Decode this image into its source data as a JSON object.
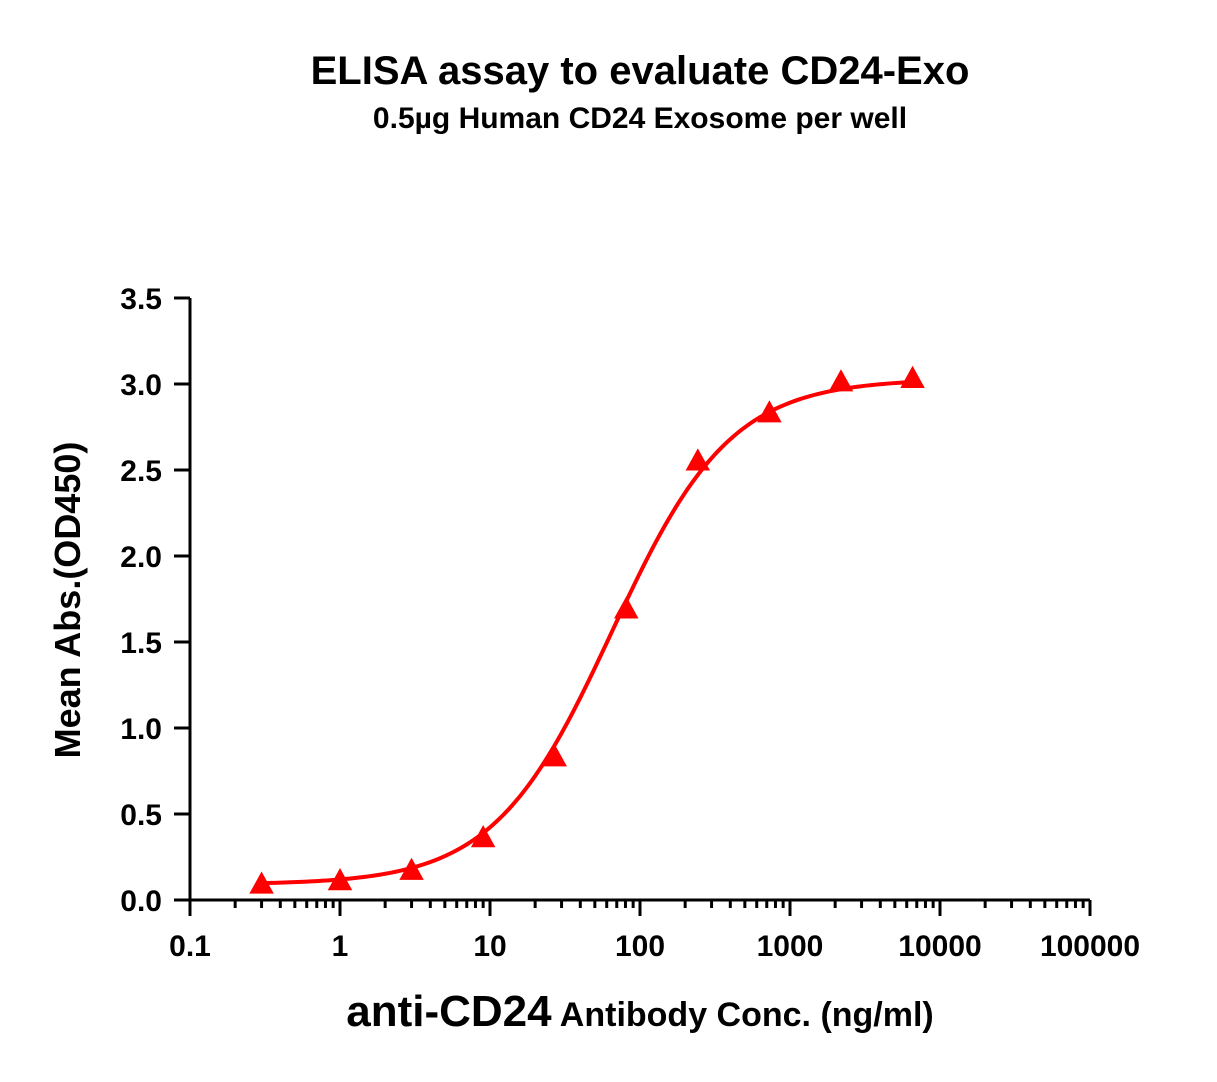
{
  "chart_data": {
    "type": "scatter",
    "title": "ELISA assay to evaluate CD24-Exo",
    "subtitle": "0.5µg Human CD24 Exosome per well",
    "xlabel_main": "anti-CD24",
    "xlabel_rest": " Antibody Conc. (ng/ml)",
    "ylabel": "Mean Abs.(OD450)",
    "x_scale": "log",
    "xlim": [
      0.1,
      100000
    ],
    "ylim": [
      0.0,
      3.5
    ],
    "x_ticks": [
      0.1,
      1,
      10,
      100,
      1000,
      10000,
      100000
    ],
    "x_tick_labels": [
      "0.1",
      "1",
      "10",
      "100",
      "1000",
      "10000",
      "100000"
    ],
    "y_ticks": [
      0.0,
      0.5,
      1.0,
      1.5,
      2.0,
      2.5,
      3.0,
      3.5
    ],
    "y_tick_labels": [
      "0.0",
      "0.5",
      "1.0",
      "1.5",
      "2.0",
      "2.5",
      "3.0",
      "3.5"
    ],
    "grid": false,
    "series": [
      {
        "color": "#ff0000",
        "marker": "triangle",
        "fit": "4PL",
        "x": [
          0.3,
          1.0,
          3.0,
          9.0,
          27.0,
          81.0,
          243.0,
          729.0,
          2187.0,
          6561.0
        ],
        "y": [
          0.09,
          0.11,
          0.17,
          0.36,
          0.83,
          1.69,
          2.55,
          2.83,
          3.01,
          3.03
        ]
      }
    ],
    "fit_params": {
      "bottom": 0.09,
      "top": 3.03,
      "ec50": 65,
      "hill": 1.1
    }
  }
}
